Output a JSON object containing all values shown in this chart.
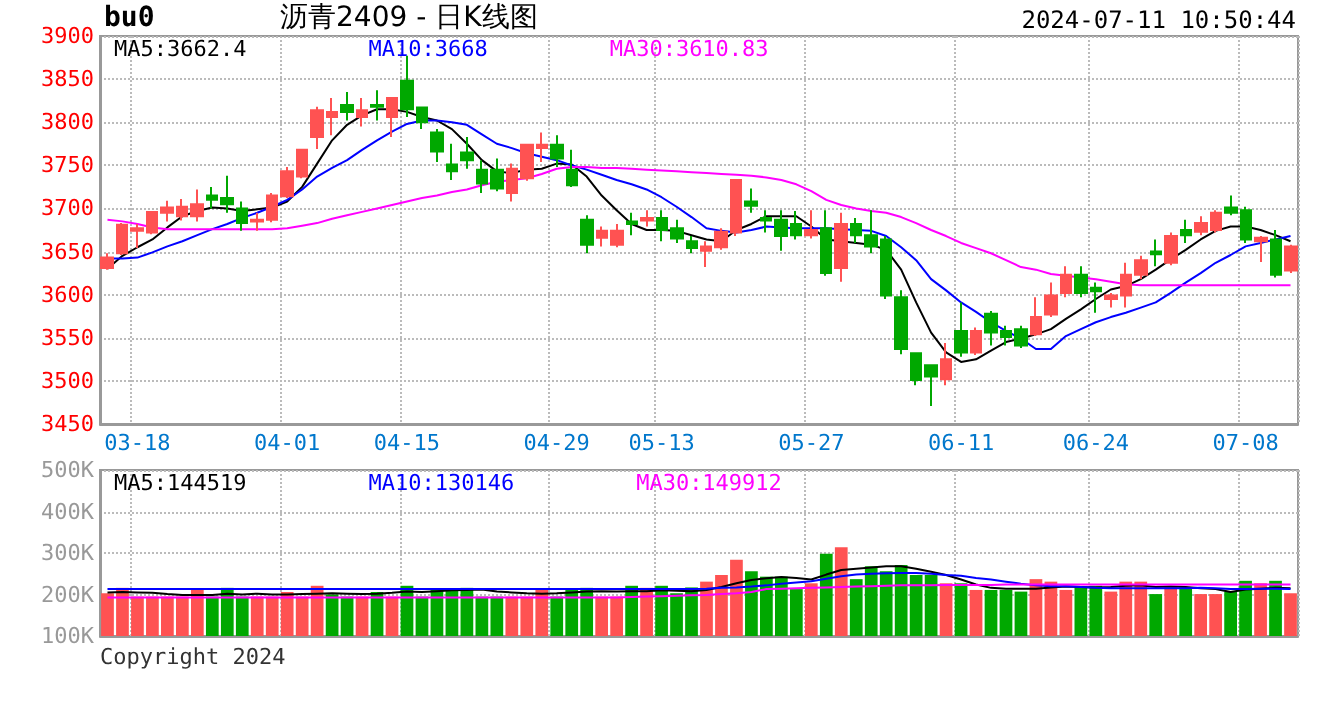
{
  "chart_data": [
    {
      "type": "candlestick",
      "title": "沥青2409 - 日K线图",
      "annotations": [
        "bu0",
        "2024-07-11 10:50:44"
      ],
      "categories": [
        null,
        null,
        "03-18",
        null,
        null,
        null,
        null,
        null,
        null,
        null,
        null,
        null,
        "04-01",
        null,
        null,
        null,
        null,
        null,
        null,
        null,
        "04-15",
        null,
        null,
        null,
        null,
        null,
        null,
        null,
        null,
        null,
        "04-29",
        null,
        null,
        null,
        null,
        null,
        null,
        "05-13",
        null,
        null,
        null,
        null,
        null,
        null,
        null,
        null,
        null,
        "05-27",
        null,
        null,
        null,
        null,
        null,
        null,
        null,
        null,
        null,
        "06-11",
        null,
        null,
        null,
        null,
        null,
        null,
        null,
        null,
        "06-24",
        null,
        null,
        null,
        null,
        null,
        null,
        null,
        null,
        null,
        "07-08",
        null,
        null,
        null
      ],
      "ohlc": [
        [
          3631,
          3648,
          3629,
          3643
        ],
        [
          3648,
          3683,
          3646,
          3681
        ],
        [
          3674,
          3682,
          3654,
          3677
        ],
        [
          3672,
          3697,
          3670,
          3696
        ],
        [
          3695,
          3709,
          3685,
          3701
        ],
        [
          3691,
          3711,
          3686,
          3702
        ],
        [
          3691,
          3722,
          3685,
          3705
        ],
        [
          3715,
          3725,
          3700,
          3710
        ],
        [
          3712,
          3738,
          3695,
          3705
        ],
        [
          3700,
          3708,
          3674,
          3683
        ],
        [
          3685,
          3695,
          3674,
          3687
        ],
        [
          3687,
          3718,
          3684,
          3715
        ],
        [
          3714,
          3748,
          3712,
          3743
        ],
        [
          3737,
          3769,
          3735,
          3768
        ],
        [
          3783,
          3818,
          3769,
          3814
        ],
        [
          3806,
          3828,
          3785,
          3812
        ],
        [
          3820,
          3835,
          3802,
          3812
        ],
        [
          3806,
          3828,
          3795,
          3814
        ],
        [
          3820,
          3837,
          3802,
          3818
        ],
        [
          3806,
          3829,
          3783,
          3828
        ],
        [
          3848,
          3877,
          3806,
          3815
        ],
        [
          3817,
          3818,
          3792,
          3800
        ],
        [
          3788,
          3792,
          3754,
          3766
        ],
        [
          3751,
          3775,
          3733,
          3743
        ],
        [
          3765,
          3783,
          3746,
          3756
        ],
        [
          3745,
          3756,
          3718,
          3729
        ],
        [
          3745,
          3758,
          3720,
          3723
        ],
        [
          3718,
          3752,
          3708,
          3746
        ],
        [
          3735,
          3775,
          3732,
          3774
        ],
        [
          3770,
          3788,
          3754,
          3774
        ],
        [
          3774,
          3785,
          3748,
          3758
        ],
        [
          3745,
          3768,
          3725,
          3727
        ],
        [
          3687,
          3692,
          3648,
          3658
        ],
        [
          3666,
          3679,
          3656,
          3674
        ],
        [
          3658,
          3682,
          3655,
          3674
        ],
        [
          3685,
          3695,
          3669,
          3682
        ],
        [
          3686,
          3698,
          3679,
          3689
        ],
        [
          3689,
          3698,
          3662,
          3675
        ],
        [
          3677,
          3687,
          3660,
          3665
        ],
        [
          3662,
          3668,
          3648,
          3654
        ],
        [
          3651,
          3662,
          3632,
          3656
        ],
        [
          3655,
          3677,
          3652,
          3673
        ],
        [
          3672,
          3733,
          3668,
          3733
        ],
        [
          3708,
          3723,
          3695,
          3703
        ],
        [
          3689,
          3698,
          3672,
          3686
        ],
        [
          3687,
          3698,
          3651,
          3668
        ],
        [
          3682,
          3697,
          3664,
          3669
        ],
        [
          3669,
          3698,
          3665,
          3675
        ],
        [
          3677,
          3698,
          3622,
          3625
        ],
        [
          3631,
          3695,
          3615,
          3682
        ],
        [
          3682,
          3689,
          3660,
          3669
        ],
        [
          3669,
          3698,
          3648,
          3656
        ],
        [
          3664,
          3668,
          3595,
          3599
        ],
        [
          3597,
          3605,
          3531,
          3537
        ],
        [
          3532,
          3532,
          3495,
          3501
        ],
        [
          3518,
          3518,
          3471,
          3505
        ],
        [
          3502,
          3544,
          3495,
          3525
        ],
        [
          3558,
          3591,
          3528,
          3533
        ],
        [
          3533,
          3562,
          3530,
          3558
        ],
        [
          3578,
          3581,
          3541,
          3556
        ],
        [
          3558,
          3564,
          3541,
          3551
        ],
        [
          3560,
          3564,
          3538,
          3541
        ],
        [
          3554,
          3597,
          3552,
          3574
        ],
        [
          3577,
          3614,
          3574,
          3599
        ],
        [
          3602,
          3633,
          3597,
          3623
        ],
        [
          3623,
          3633,
          3597,
          3602
        ],
        [
          3608,
          3614,
          3579,
          3604
        ],
        [
          3595,
          3602,
          3585,
          3599
        ],
        [
          3599,
          3637,
          3585,
          3623
        ],
        [
          3623,
          3645,
          3618,
          3640
        ],
        [
          3650,
          3664,
          3633,
          3647
        ],
        [
          3637,
          3672,
          3634,
          3668
        ],
        [
          3675,
          3687,
          3660,
          3669
        ],
        [
          3673,
          3691,
          3669,
          3683
        ],
        [
          3675,
          3698,
          3672,
          3695
        ],
        [
          3701,
          3715,
          3692,
          3695
        ],
        [
          3698,
          3702,
          3660,
          3664
        ],
        [
          3662,
          3668,
          3638,
          3666
        ],
        [
          3664,
          3675,
          3620,
          3623
        ],
        [
          3628,
          3658,
          3625,
          3656
        ]
      ],
      "colors": [
        "#ff5252",
        "#ff5252",
        "#ff5252",
        "#ff5252",
        "#ff5252",
        "#ff5252",
        "#ff5252",
        "#00a800",
        "#00a800",
        "#00a800",
        "#ff5252",
        "#ff5252",
        "#ff5252",
        "#ff5252",
        "#ff5252",
        "#ff5252",
        "#00a800",
        "#ff5252",
        "#00a800",
        "#ff5252",
        "#00a800",
        "#00a800",
        "#00a800",
        "#00a800",
        "#00a800",
        "#00a800",
        "#00a800",
        "#ff5252",
        "#ff5252",
        "#ff5252",
        "#00a800",
        "#00a800",
        "#00a800",
        "#ff5252",
        "#ff5252",
        "#00a800",
        "#ff5252",
        "#00a800",
        "#00a800",
        "#00a800",
        "#ff5252",
        "#ff5252",
        "#ff5252",
        "#00a800",
        "#00a800",
        "#00a800",
        "#00a800",
        "#ff5252",
        "#00a800",
        "#ff5252",
        "#00a800",
        "#00a800",
        "#00a800",
        "#00a800",
        "#00a800",
        "#00a800",
        "#ff5252",
        "#00a800",
        "#ff5252",
        "#00a800",
        "#00a800",
        "#00a800",
        "#ff5252",
        "#ff5252",
        "#ff5252",
        "#00a800",
        "#00a800",
        "#ff5252",
        "#ff5252",
        "#ff5252",
        "#00a800",
        "#ff5252",
        "#00a800",
        "#ff5252",
        "#ff5252",
        "#00a800",
        "#00a800",
        "#ff5252",
        "#00a800",
        "#ff5252"
      ],
      "series": [
        {
          "type": "line",
          "name": "MA5:3662.4",
          "color": "#000000",
          "values": [
            3630,
            3645,
            3655,
            3664,
            3678,
            3691,
            3697,
            3701,
            3700,
            3697,
            3699,
            3701,
            3708,
            3725,
            3752,
            3779,
            3797,
            3808,
            3815,
            3815,
            3812,
            3806,
            3802,
            3792,
            3775,
            3756,
            3743,
            3741,
            3745,
            3746,
            3752,
            3751,
            3737,
            3715,
            3698,
            3682,
            3675,
            3675,
            3674,
            3669,
            3664,
            3662,
            3675,
            3682,
            3691,
            3691,
            3691,
            3679,
            3664,
            3662,
            3660,
            3658,
            3652,
            3629,
            3591,
            3556,
            3533,
            3522,
            3525,
            3535,
            3545,
            3549,
            3554,
            3560,
            3572,
            3583,
            3595,
            3606,
            3610,
            3618,
            3629,
            3641,
            3652,
            3664,
            3674,
            3679,
            3679,
            3675,
            3669,
            3662
          ]
        },
        {
          "type": "line",
          "name": "MA10:3668",
          "color": "#0000ff",
          "values": [
            3642,
            3642,
            3643,
            3649,
            3656,
            3662,
            3669,
            3676,
            3682,
            3689,
            3695,
            3702,
            3710,
            3722,
            3737,
            3747,
            3756,
            3768,
            3779,
            3789,
            3798,
            3802,
            3802,
            3800,
            3797,
            3786,
            3775,
            3770,
            3764,
            3760,
            3756,
            3750,
            3745,
            3739,
            3733,
            3728,
            3722,
            3713,
            3702,
            3690,
            3677,
            3674,
            3672,
            3675,
            3679,
            3678,
            3677,
            3677,
            3677,
            3676,
            3675,
            3674,
            3668,
            3655,
            3640,
            3618,
            3605,
            3591,
            3580,
            3568,
            3558,
            3549,
            3537,
            3537,
            3552,
            3560,
            3568,
            3574,
            3579,
            3585,
            3591,
            3602,
            3614,
            3625,
            3637,
            3646,
            3656,
            3660,
            3664,
            3668
          ]
        },
        {
          "type": "line",
          "name": "MA30:3610.83",
          "color": "#ff00ff",
          "values": [
            3687,
            3685,
            3682,
            3678,
            3676,
            3676,
            3676,
            3676,
            3676,
            3676,
            3676,
            3676,
            3677,
            3680,
            3683,
            3688,
            3692,
            3696,
            3700,
            3704,
            3708,
            3712,
            3715,
            3719,
            3722,
            3727,
            3731,
            3733,
            3735,
            3740,
            3746,
            3748,
            3748,
            3747,
            3747,
            3746,
            3745,
            3744,
            3743,
            3742,
            3741,
            3740,
            3739,
            3738,
            3736,
            3733,
            3728,
            3720,
            3710,
            3704,
            3700,
            3697,
            3695,
            3690,
            3683,
            3675,
            3668,
            3660,
            3654,
            3648,
            3640,
            3632,
            3629,
            3624,
            3622,
            3620,
            3618,
            3615,
            3612,
            3611,
            3611,
            3611,
            3611,
            3611,
            3611,
            3611,
            3611,
            3611,
            3611,
            3611
          ]
        }
      ],
      "ylim": [
        3450,
        3900
      ],
      "yticks": [
        3450,
        3500,
        3550,
        3600,
        3650,
        3700,
        3750,
        3800,
        3850,
        3900
      ],
      "grid": true,
      "legend": "top left",
      "marker": "none"
    },
    {
      "type": "bar",
      "annotations": [
        "Copyright 2024"
      ],
      "categories": [
        null,
        null,
        null,
        null,
        null,
        null,
        null,
        null,
        null,
        null,
        null,
        null,
        null,
        null,
        null,
        null,
        null,
        null,
        null,
        null,
        null,
        null,
        null,
        null,
        null,
        null,
        null,
        null,
        null,
        null,
        null,
        null,
        null,
        null,
        null,
        null,
        null,
        null,
        null,
        null,
        null,
        null,
        null,
        null,
        null,
        null,
        null,
        null,
        null,
        null,
        null,
        null,
        null,
        null,
        null,
        null,
        null,
        null,
        null,
        null,
        null,
        null,
        null,
        null,
        null,
        null,
        null,
        null,
        null,
        null,
        null,
        null,
        null,
        null,
        null,
        null,
        null,
        null,
        null,
        null
      ],
      "series": [
        {
          "type": "bar",
          "colors": [
            "#ff5252",
            "#ff5252",
            "#ff5252",
            "#ff5252",
            "#ff5252",
            "#ff5252",
            "#ff5252",
            "#00a800",
            "#00a800",
            "#00a800",
            "#ff5252",
            "#ff5252",
            "#ff5252",
            "#ff5252",
            "#ff5252",
            "#00a800",
            "#00a800",
            "#ff5252",
            "#00a800",
            "#ff5252",
            "#00a800",
            "#00a800",
            "#00a800",
            "#00a800",
            "#00a800",
            "#00a800",
            "#00a800",
            "#ff5252",
            "#ff5252",
            "#ff5252",
            "#00a800",
            "#00a800",
            "#00a800",
            "#ff5252",
            "#ff5252",
            "#00a800",
            "#ff5252",
            "#00a800",
            "#00a800",
            "#00a800",
            "#ff5252",
            "#ff5252",
            "#ff5252",
            "#00a800",
            "#00a800",
            "#00a800",
            "#00a800",
            "#ff5252",
            "#00a800",
            "#ff5252",
            "#00a800",
            "#00a800",
            "#00a800",
            "#00a800",
            "#00a800",
            "#00a800",
            "#ff5252",
            "#00a800",
            "#ff5252",
            "#00a800",
            "#00a800",
            "#00a800",
            "#ff5252",
            "#ff5252",
            "#ff5252",
            "#00a800",
            "#00a800",
            "#ff5252",
            "#ff5252",
            "#ff5252",
            "#00a800",
            "#ff5252",
            "#00a800",
            "#ff5252",
            "#ff5252",
            "#00a800",
            "#00a800",
            "#ff5252",
            "#00a800",
            "#ff5252"
          ],
          "values": [
            203000,
            216000,
            195000,
            195000,
            195000,
            195000,
            211000,
            195000,
            216000,
            195000,
            195000,
            195000,
            206000,
            195000,
            221000,
            200000,
            195000,
            195000,
            206000,
            195000,
            221000,
            195000,
            211000,
            211000,
            216000,
            195000,
            195000,
            195000,
            195000,
            211000,
            195000,
            211000,
            216000,
            195000,
            195000,
            221000,
            216000,
            221000,
            203000,
            217000,
            231000,
            247000,
            284000,
            256000,
            243000,
            243000,
            213000,
            227000,
            298000,
            314000,
            237000,
            268000,
            256000,
            271000,
            247000,
            247000,
            227000,
            227000,
            211000,
            211000,
            211000,
            207000,
            237000,
            231000,
            211000,
            217000,
            221000,
            207000,
            231000,
            231000,
            201000,
            217000,
            217000,
            201000,
            201000,
            207000,
            233000,
            227000,
            233000,
            203000
          ]
        },
        {
          "type": "line",
          "name": "MA5:144519",
          "color": "#000000",
          "values": [
            205000,
            206000,
            205000,
            204000,
            201000,
            199000,
            199000,
            199000,
            202000,
            200000,
            202000,
            200000,
            200000,
            201000,
            202000,
            203000,
            202000,
            201000,
            202000,
            204000,
            207000,
            206000,
            208000,
            210000,
            211000,
            212000,
            207000,
            205000,
            203000,
            202000,
            203000,
            205000,
            207000,
            208000,
            207000,
            208000,
            208000,
            210000,
            209000,
            208000,
            211000,
            218000,
            227000,
            235000,
            239000,
            242000,
            240000,
            236000,
            248000,
            259000,
            262000,
            265000,
            268000,
            268000,
            262000,
            255000,
            247000,
            236000,
            224000,
            216000,
            214000,
            214000,
            214000,
            217000,
            219000,
            218000,
            217000,
            218000,
            221000,
            222000,
            218000,
            219000,
            218000,
            215000,
            213000,
            206000,
            212000,
            214000,
            216000,
            215000
          ]
        },
        {
          "type": "line",
          "name": "MA10:130146",
          "color": "#0000ff",
          "values": [
            213000,
            213000,
            213000,
            213000,
            213000,
            213000,
            213000,
            213000,
            213000,
            213000,
            213000,
            213000,
            213000,
            213000,
            213000,
            213000,
            213000,
            213000,
            213000,
            213000,
            213000,
            213000,
            213000,
            213000,
            213000,
            213000,
            213000,
            213000,
            213000,
            213000,
            213000,
            213000,
            213000,
            213000,
            213000,
            213000,
            213000,
            213000,
            213000,
            213000,
            214000,
            216000,
            217000,
            219000,
            222000,
            226000,
            229000,
            232000,
            238000,
            244000,
            248000,
            250000,
            251000,
            252000,
            252000,
            250000,
            247000,
            245000,
            240000,
            236000,
            231000,
            226000,
            222000,
            220000,
            220000,
            218000,
            216000,
            215000,
            215000,
            215000,
            215000,
            215000,
            215000,
            216000,
            215000,
            213000,
            213000,
            214000,
            214000,
            213000
          ]
        },
        {
          "type": "line",
          "name": "MA30:149912",
          "color": "#ff00ff",
          "values": [
            193000,
            193000,
            193000,
            193000,
            193000,
            193000,
            193000,
            193000,
            193000,
            193000,
            193000,
            193000,
            193000,
            193000,
            193000,
            193000,
            193000,
            193000,
            193000,
            193000,
            193000,
            193000,
            193000,
            193000,
            193000,
            193000,
            193000,
            193000,
            193000,
            193000,
            193000,
            193000,
            193000,
            193000,
            193000,
            194000,
            195000,
            196000,
            197000,
            198000,
            199000,
            201000,
            203000,
            206000,
            213000,
            214000,
            215000,
            216000,
            217000,
            218000,
            219000,
            220000,
            221000,
            222000,
            222000,
            222000,
            223000,
            223000,
            223000,
            223000,
            224000,
            224000,
            224000,
            224000,
            224000,
            224000,
            224000,
            224000,
            224000,
            224000,
            224000,
            224000,
            224000,
            224000,
            224000,
            224000,
            224000,
            224000,
            224000,
            224000
          ]
        }
      ],
      "ylim": [
        100000,
        500000
      ],
      "yticks": [
        {
          "value": 100000,
          "label": "100K"
        },
        {
          "value": 200000,
          "label": "200K"
        },
        {
          "value": 300000,
          "label": "300K"
        },
        {
          "value": 400000,
          "label": "400K"
        },
        {
          "value": 500000,
          "label": "500K"
        }
      ],
      "grid": true,
      "legend": "top left",
      "marker": "none",
      "tick_labels": "y"
    }
  ]
}
